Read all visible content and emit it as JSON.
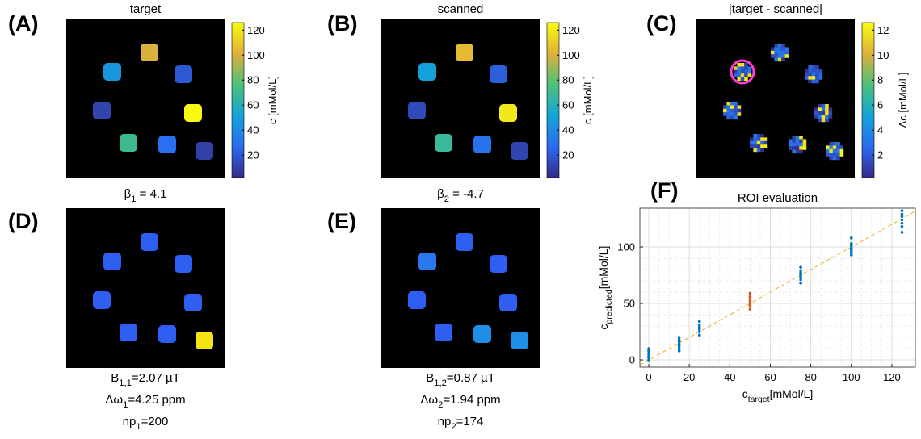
{
  "panels": [
    {
      "label": "(A)",
      "title": "target",
      "colorbar_label": "c [mMol/L]",
      "clim": [
        2,
        126
      ],
      "cticks": [
        20,
        40,
        60,
        80,
        100,
        120
      ],
      "spots": [
        100,
        45,
        20,
        12,
        125,
        70,
        28,
        10
      ],
      "caption": [
        {
          "base": "β",
          "sub": "1",
          "rest": " = 4.1"
        }
      ]
    },
    {
      "label": "(B)",
      "title": "scanned",
      "colorbar_label": "c [mMol/L]",
      "clim": [
        2,
        126
      ],
      "cticks": [
        20,
        40,
        60,
        80,
        100,
        120
      ],
      "spots": [
        105,
        50,
        22,
        14,
        120,
        68,
        30,
        12
      ],
      "caption": [
        {
          "base": "β",
          "sub": "2",
          "rest": " = -4.7"
        }
      ]
    },
    {
      "label": "(C)",
      "title": "|target - scanned|",
      "colorbar_label": "Δc [mMol/L]",
      "clim": [
        0.2,
        12.6
      ],
      "cticks": [
        2,
        4,
        6,
        8,
        10,
        12
      ]
    },
    {
      "label": "(D)",
      "caption": [
        {
          "base": "B",
          "sub": "1,1",
          "rest": "=2.07 µT"
        },
        {
          "base": "Δω",
          "sub": "1",
          "rest": "=4.25 ppm"
        },
        {
          "base": "np",
          "sub": "1",
          "rest": "=200"
        }
      ]
    },
    {
      "label": "(E)",
      "caption": [
        {
          "base": "B",
          "sub": "1,2",
          "rest": "=0.87 µT"
        },
        {
          "base": "Δω",
          "sub": "2",
          "rest": "=1.94 ppm"
        },
        {
          "base": "np",
          "sub": "2",
          "rest": "=174"
        }
      ]
    }
  ],
  "chart_data": {
    "type": "scatter",
    "label": "(F)",
    "title": "ROI evaluation",
    "x_label": {
      "base": "c",
      "sub": "target",
      "rest": "[mMol/L]"
    },
    "y_label": {
      "base": "c",
      "sub": "predicted",
      "rest": "[mMol/L]"
    },
    "xlim": [
      -4.4,
      131.6
    ],
    "ylim": [
      -6.4,
      134.3
    ],
    "xticks": [
      0,
      20,
      40,
      60,
      80,
      100,
      120
    ],
    "yticks": [
      0,
      50,
      100
    ],
    "grid": true,
    "minor_grid": true,
    "reference_line_color": "#edb120",
    "series": [
      {
        "color": "#0072bd",
        "x": [
          0,
          0,
          0,
          0,
          0,
          0,
          0,
          15,
          15,
          15,
          15,
          15,
          15,
          15,
          25,
          25,
          25,
          25,
          25,
          25,
          75,
          75,
          75,
          75,
          75,
          75,
          75,
          100,
          100,
          100,
          100,
          100,
          100,
          100,
          125,
          125,
          125,
          125,
          125,
          125,
          125
        ],
        "values": [
          0,
          2,
          3,
          5,
          6,
          8,
          10,
          8,
          10,
          12,
          14,
          16,
          18,
          20,
          22,
          25,
          27,
          29,
          31,
          34,
          68,
          71,
          73,
          75,
          77,
          79,
          82,
          93,
          95,
          97,
          99,
          101,
          103,
          108,
          113,
          118,
          121,
          124,
          127,
          129,
          132
        ]
      },
      {
        "color": "#d95319",
        "x": [
          50,
          50,
          50,
          50,
          50,
          50,
          50
        ],
        "values": [
          45,
          48,
          50,
          52,
          54,
          56,
          59
        ]
      }
    ]
  }
}
